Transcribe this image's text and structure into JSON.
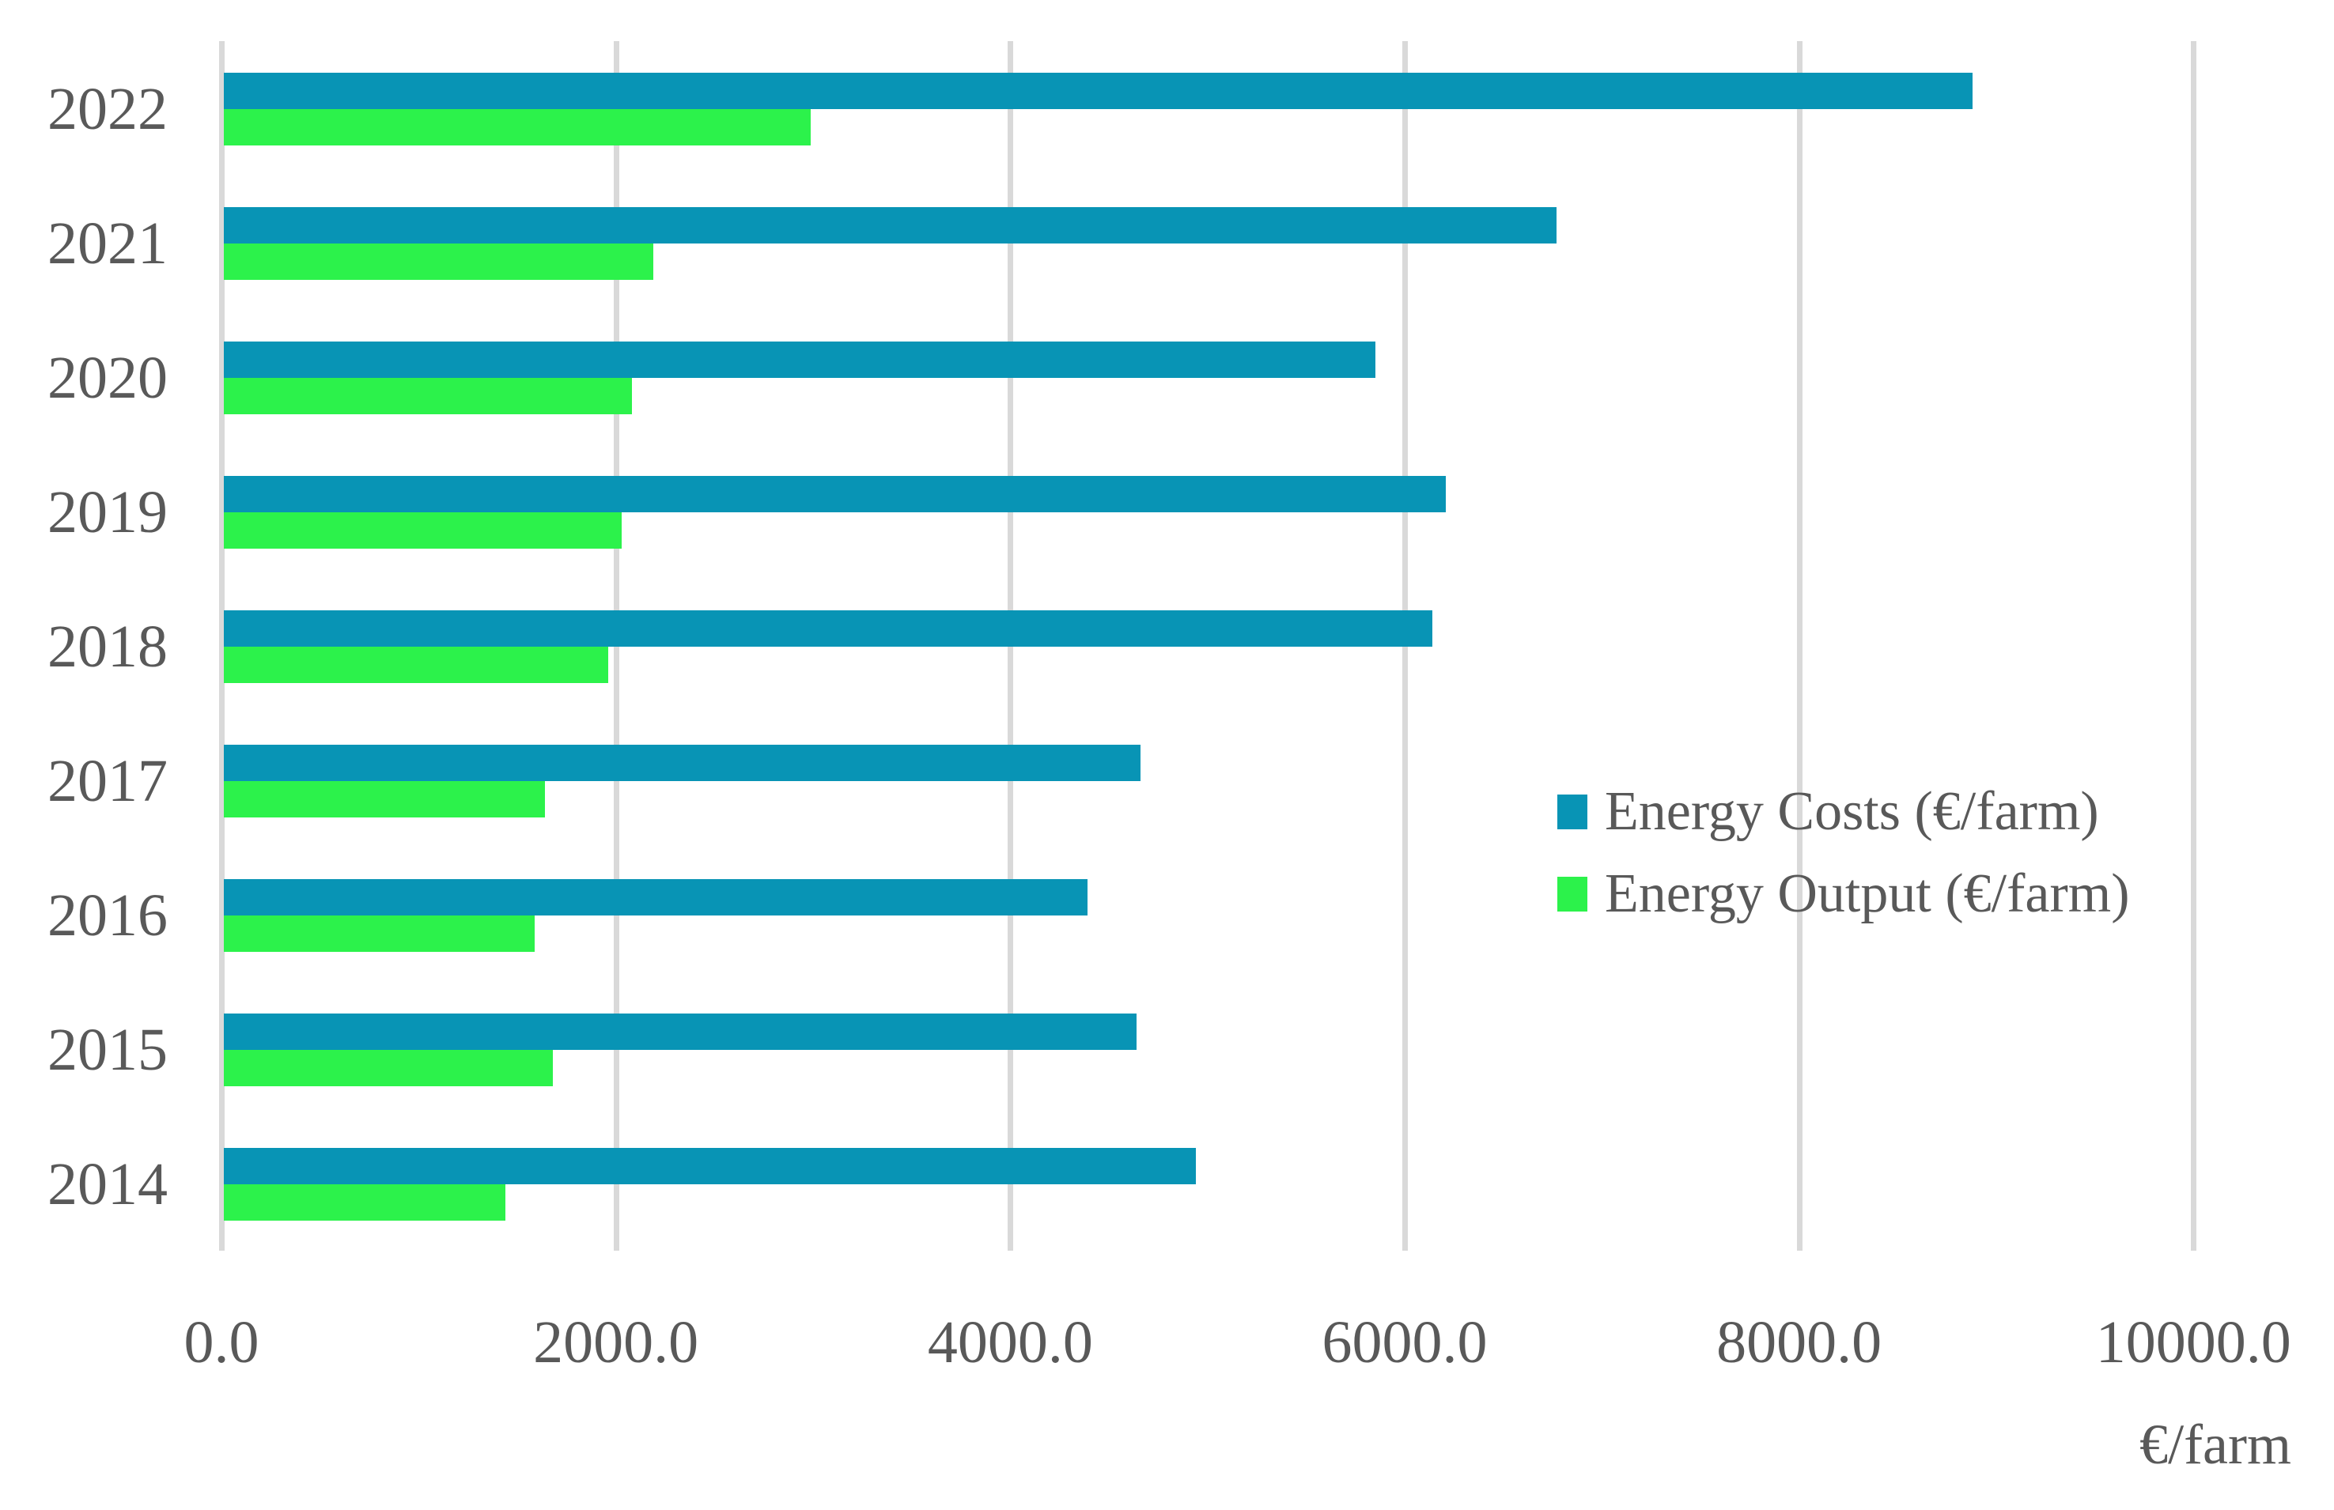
{
  "chart_data": {
    "type": "bar",
    "orientation": "horizontal",
    "title": "",
    "xlabel": "€/farm",
    "ylabel": "",
    "categories": [
      "2022",
      "2021",
      "2020",
      "2019",
      "2018",
      "2017",
      "2016",
      "2015",
      "2014"
    ],
    "series": [
      {
        "name": "Energy Costs (€/farm)",
        "color": "#0894B5",
        "values": [
          8880,
          6770,
          5850,
          6210,
          6140,
          4660,
          4390,
          4640,
          4940
        ]
      },
      {
        "name": "Energy Output (€/farm)",
        "color": "#2CF24B",
        "values": [
          2990,
          2190,
          2080,
          2030,
          1960,
          1640,
          1590,
          1680,
          1440
        ]
      }
    ],
    "xlim": [
      0,
      10000
    ],
    "x_ticks": [
      {
        "value": 0,
        "label": "0.0"
      },
      {
        "value": 2000,
        "label": "2000.0"
      },
      {
        "value": 4000,
        "label": "4000.0"
      },
      {
        "value": 6000,
        "label": "6000.0"
      },
      {
        "value": 8000,
        "label": "8000.0"
      },
      {
        "value": 10000,
        "label": "10000.0"
      }
    ],
    "grid": "vertical-only",
    "gridline_color": "#d9d9d9",
    "text_color": "#595959",
    "legend_position": "inside-right-middle"
  }
}
